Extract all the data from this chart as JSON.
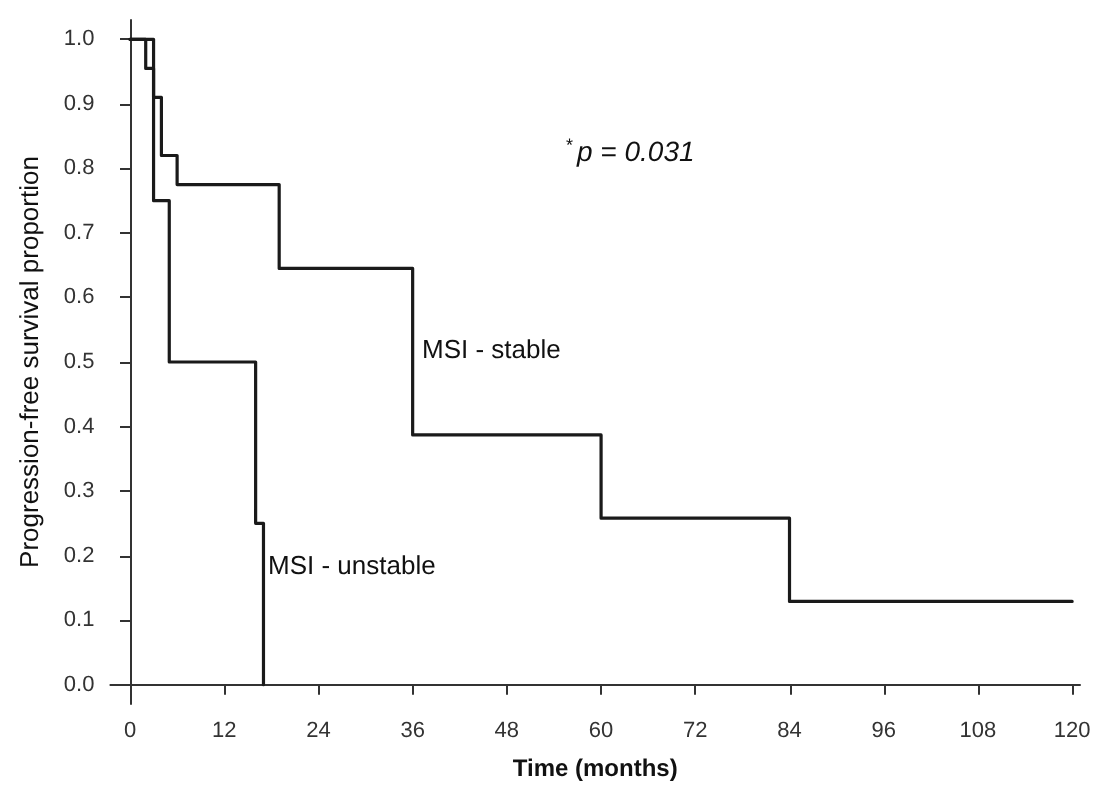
{
  "chart_data": {
    "type": "step",
    "xlabel": "Time (months)",
    "ylabel": "Progression-free survival proportion",
    "series": [
      {
        "color": "#1a1a1a",
        "x": [
          0,
          2,
          3,
          4,
          6,
          19,
          36,
          60,
          84,
          120
        ],
        "values": [
          1,
          0.955,
          0.91,
          0.82,
          0.775,
          0.645,
          0.387,
          0.258,
          0.129,
          0.129
        ]
      },
      {
        "color": "#1a1a1a",
        "x": [
          0,
          3,
          5,
          16,
          17
        ],
        "values": [
          1,
          0.75,
          0.5,
          0.25,
          0
        ]
      }
    ],
    "xlim": [
      -2.5,
      121
    ],
    "xticks": [
      0,
      12,
      24,
      36,
      48,
      60,
      72,
      84,
      96,
      108,
      120
    ],
    "ylim": [
      -0.03,
      1.03
    ],
    "yticks": [
      {
        "value": 0,
        "label": "0.0"
      },
      {
        "value": 0.1,
        "label": "0.1"
      },
      {
        "value": 0.2,
        "label": "0.2"
      },
      {
        "value": 0.3,
        "label": "0.3"
      },
      {
        "value": 0.4,
        "label": "0.4"
      },
      {
        "value": 0.5,
        "label": "0.5"
      },
      {
        "value": 0.6,
        "label": "0.6"
      },
      {
        "value": 0.7,
        "label": "0.7"
      },
      {
        "value": 0.8,
        "label": "0.8"
      },
      {
        "value": 0.9,
        "label": "0.9"
      },
      {
        "value": 1,
        "label": "1.0"
      }
    ],
    "annotations": [
      "MSI - stable",
      "MSI - unstable",
      "$^{*}$p = 0.031"
    ],
    "grid": false,
    "marker": "none",
    "line_style": "solid"
  }
}
